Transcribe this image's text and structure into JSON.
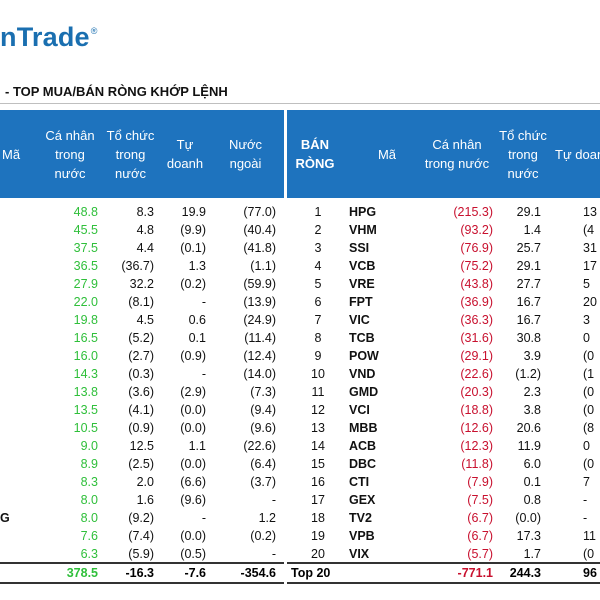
{
  "brand": {
    "logo_text": "nTrade",
    "registered": "®"
  },
  "title": "- TOP MUA/BÁN RÒNG KHỚP LỆNH",
  "left_table": {
    "headers": [
      "Mã",
      "Cá nhân\ntrong\nnước",
      "Tổ chức\ntrong\nnước",
      "Tự\ndoanh",
      "Nước\nngoài"
    ],
    "stubs": [
      "",
      "",
      "",
      "",
      "",
      "",
      "",
      "",
      "",
      "",
      "",
      "",
      "",
      "",
      "",
      "",
      "",
      "G",
      "",
      "",
      ""
    ],
    "rows": [
      [
        "48.8",
        "8.3",
        "19.9",
        "(77.0)"
      ],
      [
        "45.5",
        "4.8",
        "(9.9)",
        "(40.4)"
      ],
      [
        "37.5",
        "4.4",
        "(0.1)",
        "(41.8)"
      ],
      [
        "36.5",
        "(36.7)",
        "1.3",
        "(1.1)"
      ],
      [
        "27.9",
        "32.2",
        "(0.2)",
        "(59.9)"
      ],
      [
        "22.0",
        "(8.1)",
        "-",
        "(13.9)"
      ],
      [
        "19.8",
        "4.5",
        "0.6",
        "(24.9)"
      ],
      [
        "16.5",
        "(5.2)",
        "0.1",
        "(11.4)"
      ],
      [
        "16.0",
        "(2.7)",
        "(0.9)",
        "(12.4)"
      ],
      [
        "14.3",
        "(0.3)",
        "-",
        "(14.0)"
      ],
      [
        "13.8",
        "(3.6)",
        "(2.9)",
        "(7.3)"
      ],
      [
        "13.5",
        "(4.1)",
        "(0.0)",
        "(9.4)"
      ],
      [
        "10.5",
        "(0.9)",
        "(0.0)",
        "(9.6)"
      ],
      [
        "9.0",
        "12.5",
        "1.1",
        "(22.6)"
      ],
      [
        "8.9",
        "(2.5)",
        "(0.0)",
        "(6.4)"
      ],
      [
        "8.3",
        "2.0",
        "(6.6)",
        "(3.7)"
      ],
      [
        "8.0",
        "1.6",
        "(9.6)",
        "-"
      ],
      [
        "8.0",
        "(9.2)",
        "-",
        "1.2"
      ],
      [
        "7.6",
        "(7.4)",
        "(0.0)",
        "(0.2)"
      ],
      [
        "6.3",
        "(5.9)",
        "(0.5)",
        "-"
      ]
    ],
    "total": [
      "378.5",
      "-16.3",
      "-7.6",
      "-354.6"
    ]
  },
  "right_table": {
    "headers": [
      "BÁN\nRÒNG",
      "Mã",
      "Cá nhân\ntrong nước",
      "Tổ chức\ntrong\nnước",
      "Tự doanh"
    ],
    "rows": [
      [
        "1",
        "HPG",
        "(215.3)",
        "29.1",
        "13"
      ],
      [
        "2",
        "VHM",
        "(93.2)",
        "1.4",
        "(4"
      ],
      [
        "3",
        "SSI",
        "(76.9)",
        "25.7",
        "31"
      ],
      [
        "4",
        "VCB",
        "(75.2)",
        "29.1",
        "17"
      ],
      [
        "5",
        "VRE",
        "(43.8)",
        "27.7",
        "5"
      ],
      [
        "6",
        "FPT",
        "(36.9)",
        "16.7",
        "20"
      ],
      [
        "7",
        "VIC",
        "(36.3)",
        "16.7",
        "3"
      ],
      [
        "8",
        "TCB",
        "(31.6)",
        "30.8",
        "0"
      ],
      [
        "9",
        "POW",
        "(29.1)",
        "3.9",
        "(0"
      ],
      [
        "10",
        "VND",
        "(22.6)",
        "(1.2)",
        "(1"
      ],
      [
        "11",
        "GMD",
        "(20.3)",
        "2.3",
        "(0"
      ],
      [
        "12",
        "VCI",
        "(18.8)",
        "3.8",
        "(0"
      ],
      [
        "13",
        "MBB",
        "(12.6)",
        "20.6",
        "(8"
      ],
      [
        "14",
        "ACB",
        "(12.3)",
        "11.9",
        "0"
      ],
      [
        "15",
        "DBC",
        "(11.8)",
        "6.0",
        "(0"
      ],
      [
        "16",
        "CTI",
        "(7.9)",
        "0.1",
        "7"
      ],
      [
        "17",
        "GEX",
        "(7.5)",
        "0.8",
        "-"
      ],
      [
        "18",
        "TV2",
        "(6.7)",
        "(0.0)",
        "-"
      ],
      [
        "19",
        "VPB",
        "(6.7)",
        "17.3",
        "11"
      ],
      [
        "20",
        "VIX",
        "(5.7)",
        "1.7",
        "(0"
      ]
    ],
    "total": [
      "Top 20",
      "-771.1",
      "244.3",
      "96"
    ]
  },
  "colors": {
    "header_bg": "#1e73be",
    "buy": "#2fbf3a",
    "sell": "#c8102e",
    "brand": "#1a6fb0"
  }
}
